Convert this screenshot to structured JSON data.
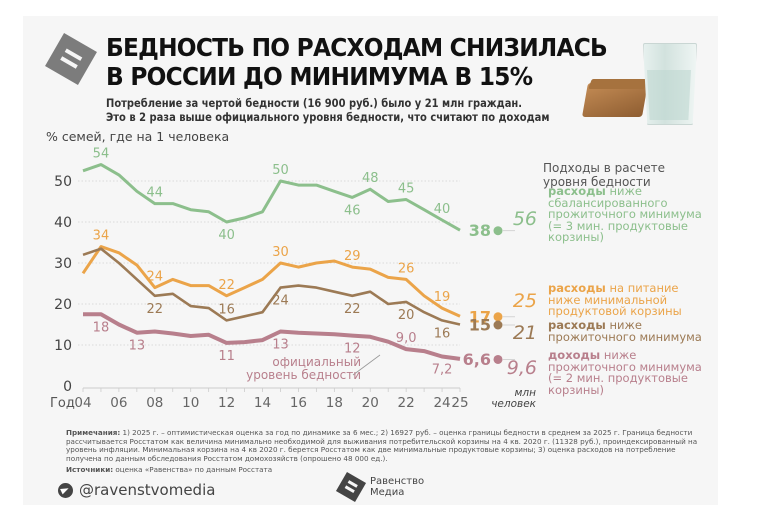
{
  "header": {
    "title_line1": "БЕДНОСТЬ ПО РАСХОДАМ СНИЗИЛАСЬ",
    "title_line2": "В РОССИИ ДО МИНИМУМА В 15%",
    "subtitle_line1": "Потребление за чертой бедности (16 900 руб.) было у 21 млн граждан.",
    "subtitle_line2": "Это в 2 раза выше официального уровня бедности, что считают по доходам",
    "logo_icon": "equals-icon",
    "illustration": "bread-and-water-glass"
  },
  "legend": {
    "title_line1": "Подходы в расчете",
    "title_line2": "уровня бедности",
    "unit_line1": "млн",
    "unit_line2": "человек",
    "items": [
      {
        "bold": "расходы",
        "lines": [
          " ниже",
          "сбалансированного",
          "прожиточного минимума",
          "(= 3 мин. продуктовые",
          "корзины)"
        ],
        "millions": "56",
        "color": "#8cbf8c"
      },
      {
        "bold": "расходы",
        "lines": [
          " на питание",
          "ниже минимальной",
          "продуктовой корзины"
        ],
        "millions": "25",
        "color": "#eba449"
      },
      {
        "bold": "расходы",
        "lines": [
          " ниже",
          "прожиточного минимума"
        ],
        "millions": "21",
        "color": "#9c7a55"
      },
      {
        "bold": "доходы",
        "lines": [
          " ниже",
          "прожиточного минимума",
          "(= 2 мин. продуктовые",
          "корзины)"
        ],
        "millions": "9,6",
        "color": "#b87f8c"
      }
    ]
  },
  "annotation": {
    "official_line1": "официальный",
    "official_line2": "уровень бедности"
  },
  "footer": {
    "notes_label": "Примечания:",
    "notes_text": " 1) 2025 г. – оптимистическая оценка за год по динамике за 6 мес.; 2) 16927 руб. – оценка границы бедности в среднем за 2025 г. Граница бедности рассчитывается Росстатом как величина минимально необходимой для выживания потребительской корзины на 4 кв. 2020 г. (11328 руб.), проиндексированный на уровень инфляции. Минимальная корзина на 4 кв 2020 г. берется Росстатом как две минимальные продуктовые корзины; 3) оценка расходов на потребление получена по данным обследования Росстатом домохозяйств (опрошено 48 000 ед.).",
    "sources_label": "Источники:",
    "sources_text": " оценка «Равенства» по данным Росстата",
    "telegram_handle": "@ravenstvomedia",
    "brand_line1": "Равенство",
    "brand_line2": "Медиа"
  },
  "chart_data": {
    "type": "line",
    "title": "БЕДНОСТЬ ПО РАСХОДАМ СНИЗИЛАСЬ В РОССИИ ДО МИНИМУМА В 15%",
    "ylabel": "% семей, где на 1 человека",
    "xlabel": "Год",
    "ylim": [
      0,
      55
    ],
    "yticks": [
      0,
      10,
      20,
      30,
      40,
      50
    ],
    "x": [
      2004,
      2005,
      2006,
      2007,
      2008,
      2009,
      2010,
      2011,
      2012,
      2013,
      2014,
      2015,
      2016,
      2017,
      2018,
      2019,
      2020,
      2021,
      2022,
      2023,
      2024,
      2025
    ],
    "xtick_labels": [
      {
        "year": 2004,
        "label": "04"
      },
      {
        "year": 2006,
        "label": "06"
      },
      {
        "year": 2008,
        "label": "08"
      },
      {
        "year": 2010,
        "label": "10"
      },
      {
        "year": 2012,
        "label": "12"
      },
      {
        "year": 2014,
        "label": "14"
      },
      {
        "year": 2016,
        "label": "16"
      },
      {
        "year": 2018,
        "label": "18"
      },
      {
        "year": 2020,
        "label": "20"
      },
      {
        "year": 2022,
        "label": "22"
      },
      {
        "year": 2024,
        "label": "24"
      },
      {
        "year": 2025,
        "label": "25"
      }
    ],
    "grid": true,
    "series": [
      {
        "name": "расходы ниже сбалансированного прожиточного минимума",
        "color": "#8cbf8c",
        "values": [
          52.5,
          54,
          51.5,
          47.5,
          44.5,
          44.5,
          43,
          42.5,
          40,
          41,
          42.5,
          50,
          49,
          49,
          47.5,
          46,
          48,
          45,
          45.5,
          43,
          40.5,
          38
        ],
        "labels": [
          {
            "year": 2005,
            "text": "54",
            "pos": "above"
          },
          {
            "year": 2008,
            "text": "44",
            "pos": "above"
          },
          {
            "year": 2012,
            "text": "40",
            "pos": "below"
          },
          {
            "year": 2015,
            "text": "50",
            "pos": "above"
          },
          {
            "year": 2019,
            "text": "46",
            "pos": "below"
          },
          {
            "year": 2020,
            "text": "48",
            "pos": "above"
          },
          {
            "year": 2022,
            "text": "45",
            "pos": "above"
          },
          {
            "year": 2024,
            "text": "40",
            "pos": "above"
          }
        ],
        "end_label": "38"
      },
      {
        "name": "расходы на питание ниже минимальной продуктовой корзины",
        "color": "#eba449",
        "values": [
          27.5,
          34,
          32.5,
          29.5,
          24,
          26,
          24.5,
          24.5,
          22,
          24,
          26,
          30,
          29,
          30,
          30.5,
          29,
          28.5,
          26.5,
          26,
          22,
          19,
          17
        ],
        "labels": [
          {
            "year": 2005,
            "text": "34",
            "pos": "above"
          },
          {
            "year": 2008,
            "text": "24",
            "pos": "above"
          },
          {
            "year": 2012,
            "text": "22",
            "pos": "above"
          },
          {
            "year": 2015,
            "text": "30",
            "pos": "above"
          },
          {
            "year": 2019,
            "text": "29",
            "pos": "above"
          },
          {
            "year": 2022,
            "text": "26",
            "pos": "above"
          },
          {
            "year": 2024,
            "text": "19",
            "pos": "above"
          }
        ],
        "end_label": "17"
      },
      {
        "name": "расходы ниже прожиточного минимума",
        "color": "#9c7a55",
        "values": [
          32,
          33.5,
          30,
          26,
          22,
          22.5,
          19.5,
          19,
          16,
          17,
          18,
          24,
          24.5,
          24,
          23,
          22,
          23,
          20,
          20.5,
          18,
          16,
          15
        ],
        "labels": [
          {
            "year": 2008,
            "text": "22",
            "pos": "below"
          },
          {
            "year": 2012,
            "text": "16",
            "pos": "above"
          },
          {
            "year": 2015,
            "text": "24",
            "pos": "below"
          },
          {
            "year": 2019,
            "text": "22",
            "pos": "below"
          },
          {
            "year": 2022,
            "text": "20",
            "pos": "below"
          },
          {
            "year": 2024,
            "text": "16",
            "pos": "below"
          }
        ],
        "end_label": "15"
      },
      {
        "name": "доходы ниже прожиточного минимума (официальный уровень бедности)",
        "color": "#b87f8c",
        "values": [
          17.5,
          17.5,
          15,
          13,
          13.3,
          12.8,
          12.2,
          12.5,
          10.5,
          10.7,
          11.2,
          13.3,
          13,
          12.8,
          12.6,
          12.3,
          12,
          10.8,
          9,
          8.5,
          7.2,
          6.6
        ],
        "labels": [
          {
            "year": 2005,
            "text": "18",
            "pos": "below"
          },
          {
            "year": 2007,
            "text": "13",
            "pos": "below"
          },
          {
            "year": 2012,
            "text": "11",
            "pos": "below"
          },
          {
            "year": 2015,
            "text": "13",
            "pos": "below"
          },
          {
            "year": 2019,
            "text": "12",
            "pos": "below"
          },
          {
            "year": 2022,
            "text": "9,0",
            "pos": "above"
          },
          {
            "year": 2024,
            "text": "7,2",
            "pos": "below"
          }
        ],
        "end_label": "6,6"
      }
    ]
  }
}
